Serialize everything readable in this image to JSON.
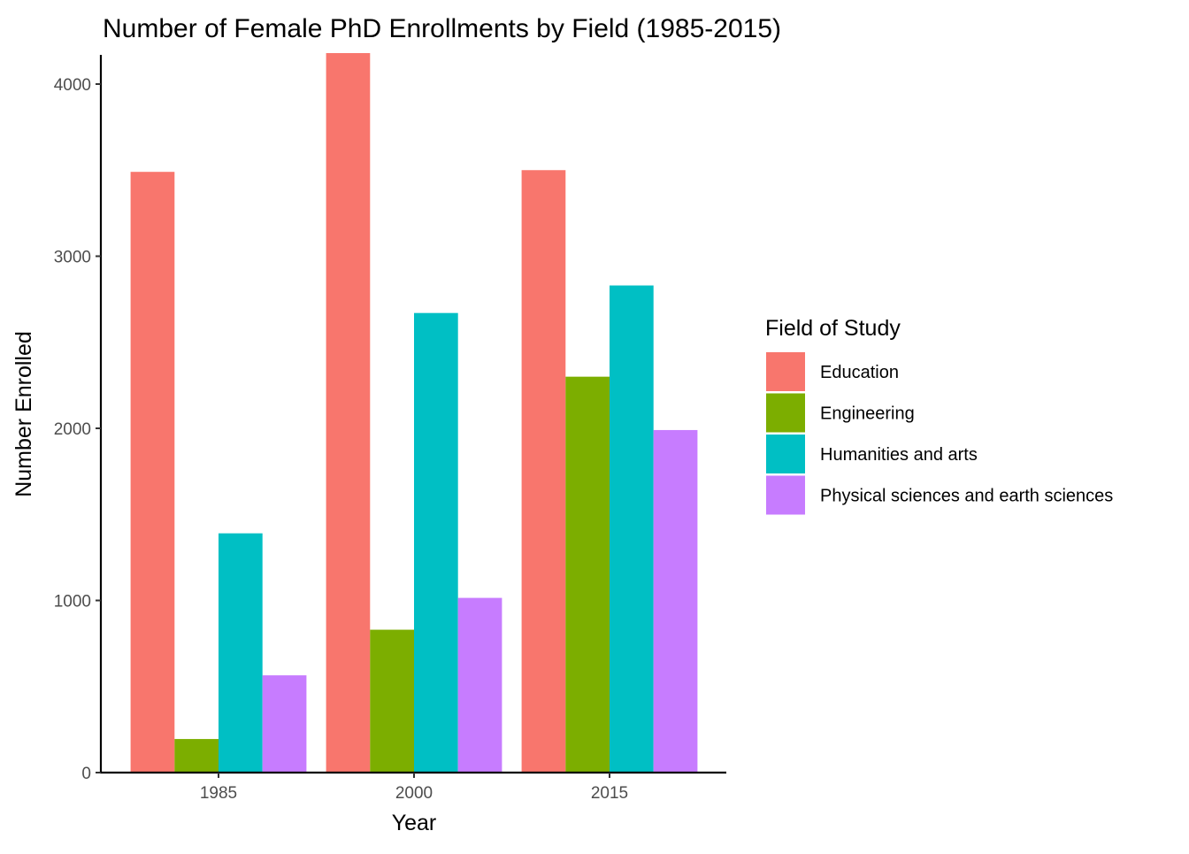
{
  "chart_data": {
    "type": "bar",
    "title": "Number of Female PhD Enrollments by Field (1985-2015)",
    "xlabel": "Year",
    "ylabel": "Number Enrolled",
    "categories": [
      "1985",
      "2000",
      "2015"
    ],
    "series": [
      {
        "name": "Education",
        "color": "#F8766D",
        "values": [
          3490,
          4180,
          3500
        ]
      },
      {
        "name": "Engineering",
        "color": "#7CAE00",
        "values": [
          195,
          830,
          2300
        ]
      },
      {
        "name": "Humanities and arts",
        "color": "#00BFC4",
        "values": [
          1390,
          2670,
          2830
        ]
      },
      {
        "name": "Physical sciences and earth sciences",
        "color": "#C77CFF",
        "values": [
          565,
          1015,
          1990
        ]
      }
    ],
    "ylim": [
      0,
      4180
    ],
    "yticks": [
      0,
      1000,
      2000,
      3000,
      4000
    ],
    "grid": false,
    "legend": {
      "title": "Field of Study",
      "position": "right"
    }
  }
}
